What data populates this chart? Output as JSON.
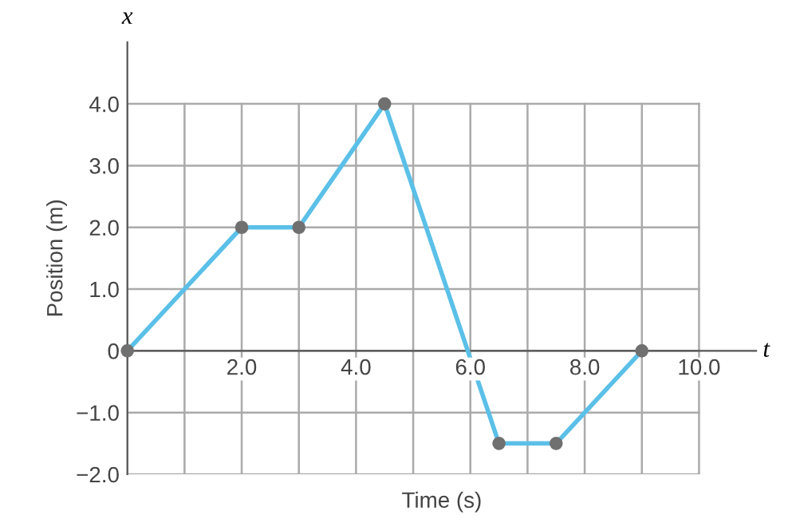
{
  "chart_data": {
    "type": "line",
    "xlabel": "Time (s)",
    "ylabel": "Position (m)",
    "x": [
      0,
      2,
      3,
      4.5,
      6.5,
      7.5,
      9
    ],
    "series": [
      {
        "color": "#5bc0e8",
        "values": [
          0,
          2,
          2,
          4,
          -1.5,
          -1.5,
          0
        ]
      }
    ],
    "marker": "circle",
    "line_style": "solid",
    "xlim": [
      0,
      11
    ],
    "ylim": [
      -2,
      5
    ],
    "xticks": [
      {
        "value": 1,
        "label": null
      },
      {
        "value": 2,
        "label": "2.0"
      },
      {
        "value": 3,
        "label": null
      },
      {
        "value": 4,
        "label": "4.0"
      },
      {
        "value": 5,
        "label": null
      },
      {
        "value": 6,
        "label": "6.0"
      },
      {
        "value": 7,
        "label": null
      },
      {
        "value": 8,
        "label": "8.0"
      },
      {
        "value": 9,
        "label": null
      },
      {
        "value": 10,
        "label": "10.0"
      }
    ],
    "yticks": [
      {
        "value": -2,
        "label": "−2.0"
      },
      {
        "value": -1,
        "label": "−1.0"
      },
      0,
      {
        "value": 1,
        "label": "1.0"
      },
      {
        "value": 2,
        "label": "2.0"
      },
      {
        "value": 3,
        "label": "3.0"
      },
      {
        "value": 4,
        "label": "4.0"
      }
    ],
    "grid": true,
    "annotations": [
      "x",
      "t"
    ]
  }
}
